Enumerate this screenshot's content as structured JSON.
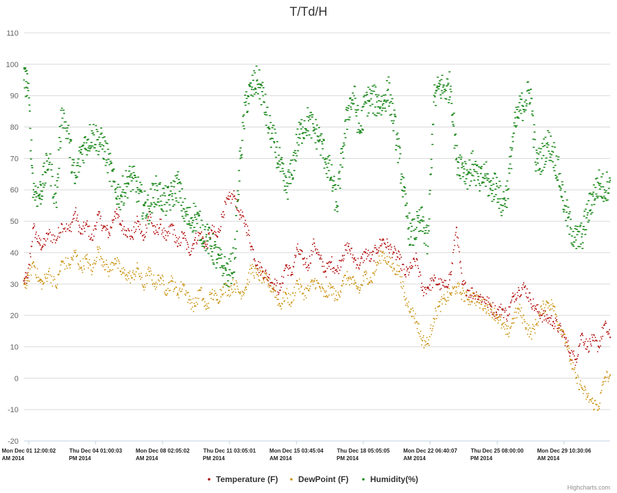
{
  "chart_data": {
    "type": "scatter",
    "title": "T/Td/H",
    "xlabel": "",
    "ylabel": "",
    "ylim": [
      -20,
      110
    ],
    "yticks": [
      "110",
      "100",
      "90",
      "80",
      "70",
      "60",
      "50",
      "40",
      "30",
      "20",
      "10",
      "0",
      "-10",
      "-20"
    ],
    "xticks": [
      [
        "Mon Dec 01 12:00:02",
        "AM 2014"
      ],
      [
        "Thu Dec 04 01:00:03",
        "PM 2014"
      ],
      [
        "Mon Dec 08 02:05:02",
        "AM 2014"
      ],
      [
        "Thu Dec 11 03:05:01",
        "PM 2014"
      ],
      [
        "Mon Dec 15 03:45:04",
        "AM 2014"
      ],
      [
        "Thu Dec 18 05:05:05",
        "PM 2014"
      ],
      [
        "Mon Dec 22 06:40:07",
        "AM 2014"
      ],
      [
        "Thu Dec 25 08:00:00",
        "PM 2014"
      ],
      [
        "Mon Dec 29 10:30:06",
        "AM 2014"
      ]
    ],
    "grid": true,
    "legend_position": "bottom-center",
    "credits": "Highcharts.com",
    "x_range_days": [
      0,
      30.9
    ],
    "x_unit": "days",
    "series": [
      {
        "name": "Temperature (F)",
        "color": "#b10808",
        "x": [
          0,
          0.2,
          0.5,
          0.8,
          1.0,
          1.3,
          1.7,
          2.0,
          2.4,
          2.7,
          3.0,
          3.3,
          3.6,
          3.9,
          4.2,
          4.5,
          4.8,
          5.1,
          5.4,
          5.7,
          6.0,
          6.3,
          6.6,
          6.9,
          7.2,
          7.5,
          7.8,
          8.1,
          8.4,
          8.7,
          9.0,
          9.3,
          9.6,
          9.9,
          10.2,
          10.5,
          10.8,
          11.1,
          11.4,
          11.7,
          12.0,
          12.3,
          12.6,
          12.9,
          13.2,
          13.5,
          13.8,
          14.1,
          14.4,
          14.7,
          15.0,
          15.3,
          15.6,
          15.9,
          16.2,
          16.5,
          16.8,
          17.1,
          17.4,
          17.7,
          18.0,
          18.3,
          18.6,
          18.9,
          19.2,
          19.5,
          19.8,
          20.1,
          20.4,
          20.7,
          21.0,
          21.3,
          21.6,
          21.9,
          22.2,
          22.5,
          22.8,
          23.1,
          23.4,
          23.7,
          24.0,
          24.3,
          24.6,
          24.9,
          25.2,
          25.5,
          25.8,
          26.1,
          26.4,
          26.7,
          27.0,
          27.3,
          27.6,
          27.9,
          28.2,
          28.5,
          28.8,
          29.1,
          29.4,
          29.7,
          30.0,
          30.3,
          30.6,
          30.9
        ],
        "y": [
          31,
          32,
          48,
          43,
          42,
          46,
          44,
          49,
          47,
          53,
          46,
          49,
          44,
          52,
          48,
          46,
          53,
          49,
          47,
          45,
          50,
          44,
          53,
          46,
          49,
          44,
          49,
          42,
          46,
          40,
          44,
          46,
          42,
          47,
          45,
          53,
          57,
          58,
          52,
          49,
          42,
          36,
          34,
          32,
          30,
          28,
          36,
          33,
          41,
          38,
          36,
          43,
          38,
          34,
          37,
          34,
          39,
          42,
          38,
          36,
          40,
          38,
          41,
          44,
          42,
          40,
          38,
          33,
          35,
          38,
          28,
          29,
          31,
          30,
          29,
          33,
          48,
          30,
          28,
          27,
          26,
          25,
          23,
          21,
          22,
          20,
          26,
          28,
          29,
          25,
          22,
          20,
          19,
          18,
          16,
          13,
          8,
          6,
          14,
          10,
          12,
          10,
          17,
          13
        ]
      },
      {
        "name": "DewPoint (F)",
        "color": "#c9910d",
        "x": [
          0,
          0.2,
          0.5,
          0.8,
          1.0,
          1.3,
          1.7,
          2.0,
          2.4,
          2.7,
          3.0,
          3.3,
          3.6,
          3.9,
          4.2,
          4.5,
          4.8,
          5.1,
          5.4,
          5.7,
          6.0,
          6.3,
          6.6,
          6.9,
          7.2,
          7.5,
          7.8,
          8.1,
          8.4,
          8.7,
          9.0,
          9.3,
          9.6,
          9.9,
          10.2,
          10.5,
          10.8,
          11.1,
          11.4,
          11.7,
          12.0,
          12.3,
          12.6,
          12.9,
          13.2,
          13.5,
          13.8,
          14.1,
          14.4,
          14.7,
          15.0,
          15.3,
          15.6,
          15.9,
          16.2,
          16.5,
          16.8,
          17.1,
          17.4,
          17.7,
          18.0,
          18.3,
          18.6,
          18.9,
          19.2,
          19.5,
          19.8,
          20.1,
          20.4,
          20.7,
          21.0,
          21.3,
          21.6,
          21.9,
          22.2,
          22.5,
          22.8,
          23.1,
          23.4,
          23.7,
          24.0,
          24.3,
          24.6,
          24.9,
          25.2,
          25.5,
          25.8,
          26.1,
          26.4,
          26.7,
          27.0,
          27.3,
          27.6,
          27.9,
          28.2,
          28.5,
          28.8,
          29.1,
          29.4,
          29.7,
          30.0,
          30.3,
          30.6,
          30.9
        ],
        "y": [
          30,
          31,
          37,
          31,
          30,
          34,
          29,
          37,
          36,
          40,
          35,
          38,
          34,
          41,
          37,
          34,
          38,
          34,
          33,
          32,
          35,
          29,
          34,
          30,
          32,
          28,
          31,
          27,
          30,
          25,
          23,
          28,
          22,
          27,
          25,
          29,
          28,
          30,
          27,
          29,
          35,
          33,
          32,
          30,
          28,
          23,
          27,
          24,
          31,
          27,
          28,
          31,
          29,
          26,
          29,
          25,
          31,
          32,
          30,
          28,
          33,
          31,
          36,
          40,
          37,
          35,
          34,
          25,
          22,
          18,
          12,
          11,
          19,
          23,
          25,
          27,
          29,
          27,
          25,
          26,
          24,
          23,
          22,
          20,
          17,
          14,
          19,
          22,
          18,
          14,
          17,
          22,
          24,
          23,
          17,
          14,
          6,
          0,
          -3,
          -6,
          -8,
          -9,
          0,
          1
        ]
      },
      {
        "name": "Humidity(%)",
        "color": "#1f8a1f",
        "x": [
          0,
          0.2,
          0.5,
          0.8,
          1.0,
          1.3,
          1.7,
          2.0,
          2.4,
          2.7,
          3.0,
          3.3,
          3.6,
          3.9,
          4.2,
          4.5,
          4.8,
          5.1,
          5.4,
          5.7,
          6.0,
          6.3,
          6.6,
          6.9,
          7.2,
          7.5,
          7.8,
          8.1,
          8.4,
          8.7,
          9.0,
          9.3,
          9.6,
          9.9,
          10.2,
          10.5,
          10.8,
          11.1,
          11.4,
          11.7,
          12.0,
          12.3,
          12.6,
          12.9,
          13.2,
          13.5,
          13.8,
          14.1,
          14.4,
          14.7,
          15.0,
          15.3,
          15.6,
          15.9,
          16.2,
          16.5,
          16.8,
          17.1,
          17.4,
          17.7,
          18.0,
          18.3,
          18.6,
          18.9,
          19.2,
          19.5,
          19.8,
          20.1,
          20.4,
          20.7,
          21.0,
          21.3,
          21.6,
          21.9,
          22.2,
          22.5,
          22.8,
          23.1,
          23.4,
          23.7,
          24.0,
          24.3,
          24.6,
          24.9,
          25.2,
          25.5,
          25.8,
          26.1,
          26.4,
          26.7,
          27.0,
          27.3,
          27.6,
          27.9,
          28.2,
          28.5,
          28.8,
          29.1,
          29.4,
          29.7,
          30.0,
          30.3,
          30.6,
          30.9
        ],
        "y": [
          95,
          94,
          60,
          58,
          62,
          70,
          56,
          86,
          75,
          62,
          72,
          75,
          78,
          76,
          74,
          68,
          60,
          58,
          62,
          64,
          60,
          55,
          54,
          60,
          58,
          56,
          58,
          62,
          54,
          50,
          52,
          48,
          45,
          42,
          38,
          35,
          33,
          38,
          70,
          88,
          92,
          95,
          90,
          80,
          75,
          68,
          60,
          65,
          75,
          80,
          82,
          79,
          76,
          70,
          64,
          55,
          72,
          86,
          90,
          78,
          88,
          89,
          88,
          87,
          92,
          82,
          70,
          55,
          45,
          48,
          50,
          42,
          88,
          93,
          92,
          93,
          70,
          68,
          65,
          68,
          62,
          65,
          60,
          62,
          55,
          60,
          78,
          85,
          88,
          92,
          68,
          70,
          75,
          72,
          65,
          55,
          48,
          44,
          45,
          52,
          58,
          62,
          60,
          63
        ]
      }
    ]
  }
}
